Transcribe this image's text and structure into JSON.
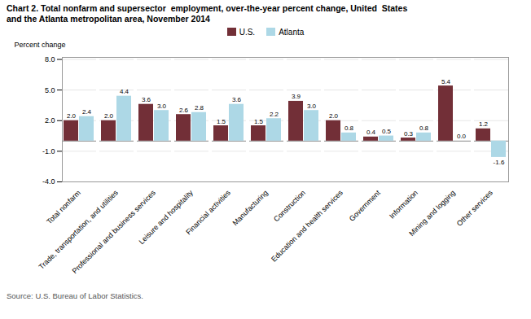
{
  "chart_data": {
    "type": "bar",
    "title": "Chart 2. Total nonfarm and supersector  employment, over-the-year percent change, United  States",
    "subtitle": "and the Atlanta metropolitan area, November 2014",
    "ylabel": "Percent change",
    "source": "Source: U.S. Bureau of Labor Statistics.",
    "categories": [
      "Total nonfarm",
      "Trade, transportation, and utilities",
      "Professional and business services",
      "Leisure and hospitality",
      "Financial activities",
      "Manufacturing",
      "Construction",
      "Education and health services",
      "Government",
      "Information",
      "Mining and logging",
      "Other services"
    ],
    "series": [
      {
        "name": "U.S.",
        "color": "#722F37",
        "values": [
          2.0,
          2.0,
          3.6,
          2.6,
          1.5,
          1.5,
          3.9,
          2.0,
          0.4,
          0.3,
          5.4,
          1.2
        ],
        "value_labels": [
          "2.0",
          "2.0",
          "3.6",
          "2.6",
          "1.5",
          "1.5",
          "3.9",
          "2.0",
          "0.4",
          "0.3",
          "5.4",
          "1.2"
        ]
      },
      {
        "name": "Atlanta",
        "color": "#ADD8E6",
        "values": [
          2.4,
          4.4,
          3.0,
          2.8,
          3.6,
          2.2,
          3.0,
          0.8,
          0.5,
          0.8,
          0.0,
          -1.6
        ],
        "value_labels": [
          "2.4",
          "4.4",
          "3.0",
          "2.8",
          "3.6",
          "2.2",
          "3.0",
          "0.8",
          "0.5",
          "0.8",
          "0.0",
          "-1.6"
        ]
      }
    ],
    "ylim": [
      -4.0,
      8.2
    ],
    "yticks": [
      {
        "value": -4.0,
        "label": "-4.0"
      },
      {
        "value": -1.0,
        "label": "-1.0"
      },
      {
        "value": 2.0,
        "label": "2.0"
      },
      {
        "value": 5.0,
        "label": "5.0"
      },
      {
        "value": 8.0,
        "label": "8.0"
      }
    ],
    "grid": true,
    "legend": "upper center",
    "data_labels": true
  }
}
